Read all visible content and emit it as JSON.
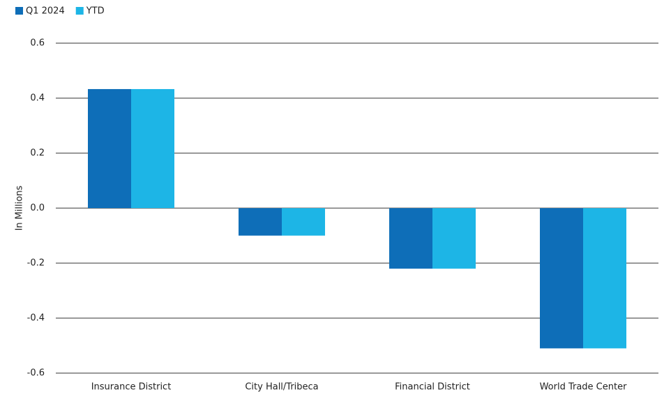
{
  "chart_data": {
    "type": "bar",
    "y_label": "In Millions",
    "categories": [
      "Insurance District",
      "City Hall/Tribeca",
      "Financial District",
      "World Trade Center"
    ],
    "series": [
      {
        "name": "Q1 2024",
        "color": "#0e6eb8",
        "values": [
          0.433,
          -0.1,
          -0.22,
          -0.51
        ]
      },
      {
        "name": "YTD",
        "color": "#1db5e6",
        "values": [
          0.433,
          -0.1,
          -0.22,
          -0.51
        ]
      }
    ],
    "ylim": [
      -0.6,
      0.6
    ],
    "yticks": [
      0.6,
      0.4,
      0.2,
      {
        "value": 0,
        "label": "0.0"
      },
      -0.2,
      -0.4,
      -0.6
    ],
    "grid": true,
    "legend": "top-left"
  }
}
